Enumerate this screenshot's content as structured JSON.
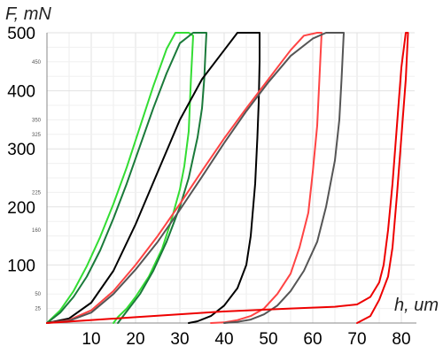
{
  "chart_data": {
    "type": "line",
    "title": "",
    "xlabel": "h, um",
    "ylabel": "F, mN",
    "xlim": [
      0,
      82
    ],
    "ylim": [
      0,
      500
    ],
    "x_ticks": [
      "10",
      "20",
      "30",
      "40",
      "50",
      "60",
      "70",
      "80"
    ],
    "y_ticks": [
      "100",
      "200",
      "300",
      "400",
      "500"
    ],
    "y_minor_labels": [
      "25",
      "50",
      "160",
      "225",
      "325",
      "350",
      "450"
    ],
    "grid": true,
    "legend": "none",
    "series": [
      {
        "color": "#33dd33",
        "x": [
          0,
          3,
          6,
          9,
          12,
          15,
          18,
          21,
          24,
          27,
          29,
          31,
          32,
          33,
          32.5,
          32,
          31,
          30,
          28,
          26,
          23,
          20,
          18,
          16,
          15
        ],
        "y": [
          0,
          22,
          55,
          98,
          148,
          205,
          268,
          338,
          408,
          472,
          500,
          500,
          500,
          495,
          420,
          330,
          270,
          230,
          175,
          128,
          80,
          45,
          25,
          10,
          0
        ]
      },
      {
        "color": "#1a7a3a",
        "x": [
          0,
          3,
          6,
          9,
          12,
          15,
          18,
          21,
          24,
          27,
          30,
          33,
          35,
          36,
          35.8,
          35.5,
          35,
          34,
          32,
          30,
          27,
          24,
          21,
          18,
          16
        ],
        "y": [
          0,
          18,
          45,
          80,
          125,
          180,
          240,
          305,
          370,
          430,
          482,
          500,
          500,
          500,
          470,
          420,
          370,
          320,
          250,
          200,
          140,
          90,
          50,
          20,
          0
        ]
      },
      {
        "color": "#000000",
        "x": [
          0,
          5,
          10,
          15,
          20,
          25,
          30,
          35,
          40,
          43,
          47,
          48,
          48,
          47.8,
          47.5,
          47,
          46,
          45,
          43,
          40,
          37,
          34,
          32
        ],
        "y": [
          0,
          8,
          35,
          90,
          170,
          260,
          350,
          420,
          470,
          500,
          500,
          500,
          450,
          380,
          320,
          240,
          150,
          100,
          60,
          30,
          12,
          3,
          0
        ]
      },
      {
        "color": "#ff4444",
        "x": [
          0,
          5,
          10,
          15,
          20,
          25,
          30,
          35,
          40,
          45,
          50,
          55,
          58,
          61,
          62,
          61.5,
          61,
          60,
          59,
          57,
          55,
          52,
          49,
          46,
          43,
          40,
          37
        ],
        "y": [
          0,
          5,
          22,
          55,
          100,
          150,
          205,
          262,
          318,
          370,
          420,
          470,
          495,
          500,
          500,
          420,
          340,
          260,
          190,
          130,
          85,
          50,
          25,
          12,
          5,
          1,
          0
        ]
      },
      {
        "color": "#555555",
        "x": [
          0,
          5,
          10,
          15,
          20,
          25,
          30,
          35,
          40,
          45,
          50,
          55,
          60,
          63,
          66,
          67,
          66.5,
          66,
          65,
          63,
          61,
          58,
          55,
          52,
          49,
          46,
          43,
          40
        ],
        "y": [
          0,
          4,
          18,
          50,
          92,
          140,
          195,
          252,
          310,
          365,
          415,
          460,
          490,
          500,
          500,
          500,
          420,
          350,
          280,
          200,
          140,
          90,
          55,
          30,
          15,
          6,
          2,
          0
        ]
      },
      {
        "color": "#ee0000",
        "x": [
          0,
          20,
          40,
          55,
          65,
          70,
          73,
          75,
          76,
          77,
          78,
          79,
          80,
          81,
          81.5,
          81,
          80,
          79,
          78,
          77,
          75,
          73,
          70
        ],
        "y": [
          0,
          10,
          20,
          25,
          28,
          32,
          45,
          70,
          100,
          160,
          240,
          340,
          440,
          500,
          500,
          420,
          320,
          220,
          130,
          80,
          40,
          12,
          0
        ]
      }
    ]
  }
}
